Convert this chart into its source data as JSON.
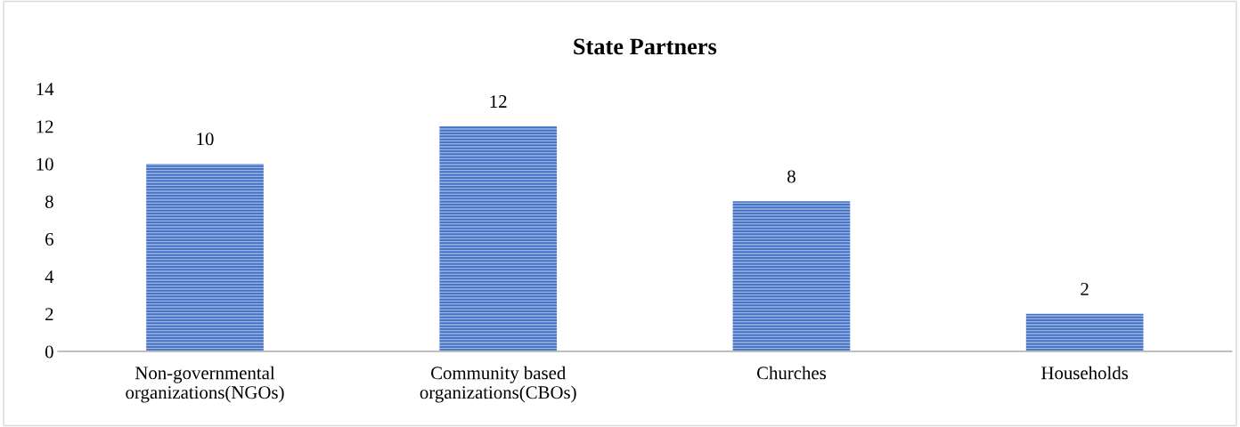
{
  "chart_data": {
    "type": "bar",
    "title": "State Partners",
    "categories": [
      "Non-governmental\norganizations(NGOs)",
      "Community based\norganizations(CBOs)",
      "Churches",
      "Households"
    ],
    "values": [
      10,
      12,
      8,
      2
    ],
    "color": "#4472c4",
    "ylim": [
      0,
      14
    ],
    "yticks": [
      0,
      2,
      4,
      6,
      8,
      10,
      12,
      14
    ],
    "grid": false,
    "data_labels": true
  }
}
